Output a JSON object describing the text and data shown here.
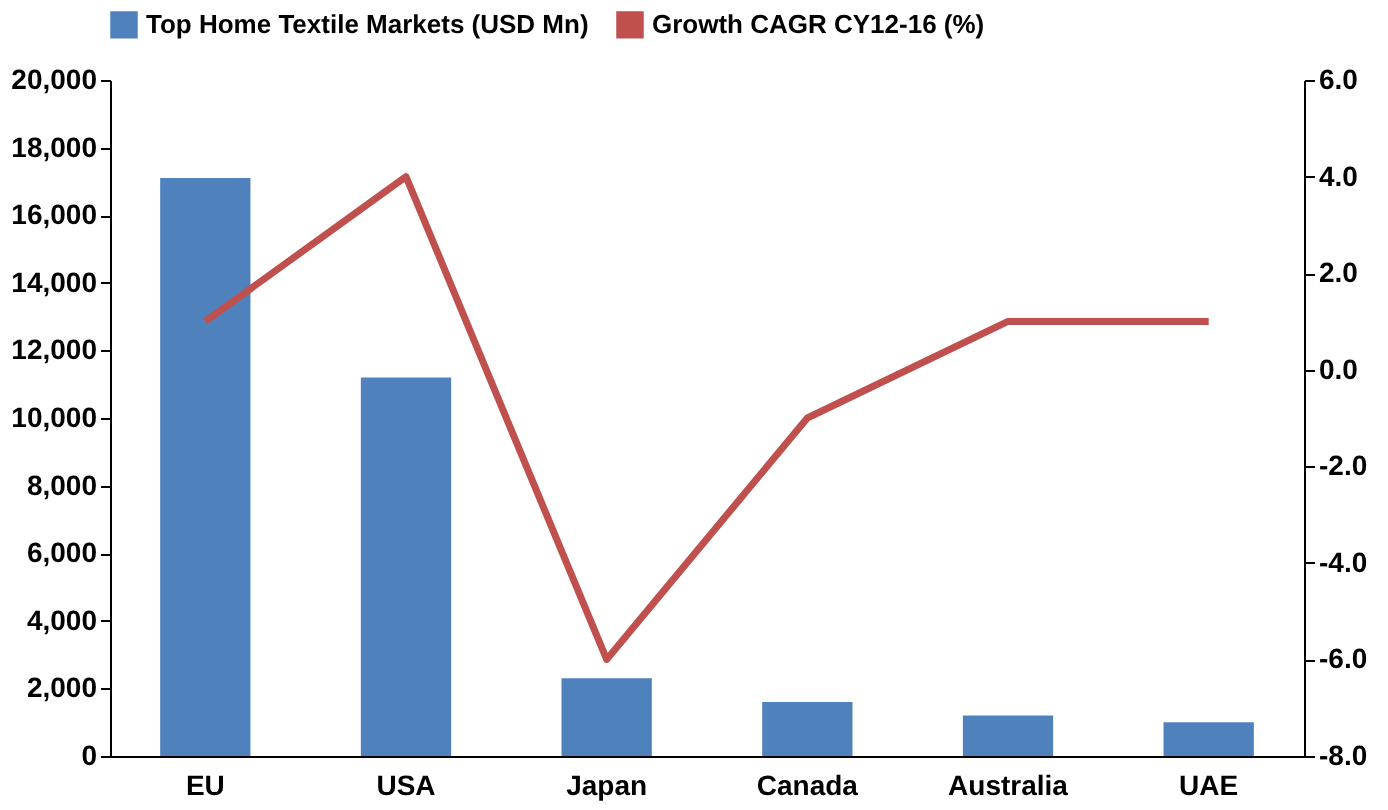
{
  "chart_data": {
    "type": "bar",
    "categories": [
      "EU",
      "USA",
      "Japan",
      "Canada",
      "Australia",
      "UAE"
    ],
    "series": [
      {
        "name": "Top Home Textile Markets (USD Mn)",
        "color": "#4f81bd",
        "values": [
          17100,
          11200,
          2300,
          1600,
          1200,
          1000
        ]
      },
      {
        "name": "Growth CAGR CY12-16 (%)",
        "type": "line",
        "axis": "y2",
        "color": "#c0504d",
        "values": [
          1.0,
          4.0,
          -6.0,
          -1.0,
          1.0,
          1.0
        ]
      }
    ],
    "ylim": [
      0,
      20000
    ],
    "yticks": [
      {
        "value": 0,
        "label": "0"
      },
      {
        "value": 2000,
        "label": "2,000"
      },
      {
        "value": 4000,
        "label": "4,000"
      },
      {
        "value": 6000,
        "label": "6,000"
      },
      {
        "value": 8000,
        "label": "8,000"
      },
      {
        "value": 10000,
        "label": "10,000"
      },
      {
        "value": 12000,
        "label": "12,000"
      },
      {
        "value": 14000,
        "label": "14,000"
      },
      {
        "value": 16000,
        "label": "16,000"
      },
      {
        "value": 18000,
        "label": "18,000"
      },
      {
        "value": 20000,
        "label": "20,000"
      }
    ],
    "y2lim": [
      -8,
      6
    ],
    "y2ticks": [
      {
        "value": -8,
        "label": "-8.0"
      },
      {
        "value": -6,
        "label": "-6.0"
      },
      {
        "value": -4,
        "label": "-4.0"
      },
      {
        "value": -2,
        "label": "-2.0"
      },
      {
        "value": 0,
        "label": "0.0"
      },
      {
        "value": 2,
        "label": "2.0"
      },
      {
        "value": 4,
        "label": "4.0"
      },
      {
        "value": 6,
        "label": "6.0"
      }
    ],
    "legend": "top",
    "grid": false,
    "marker": "none",
    "line_style": "solid"
  }
}
